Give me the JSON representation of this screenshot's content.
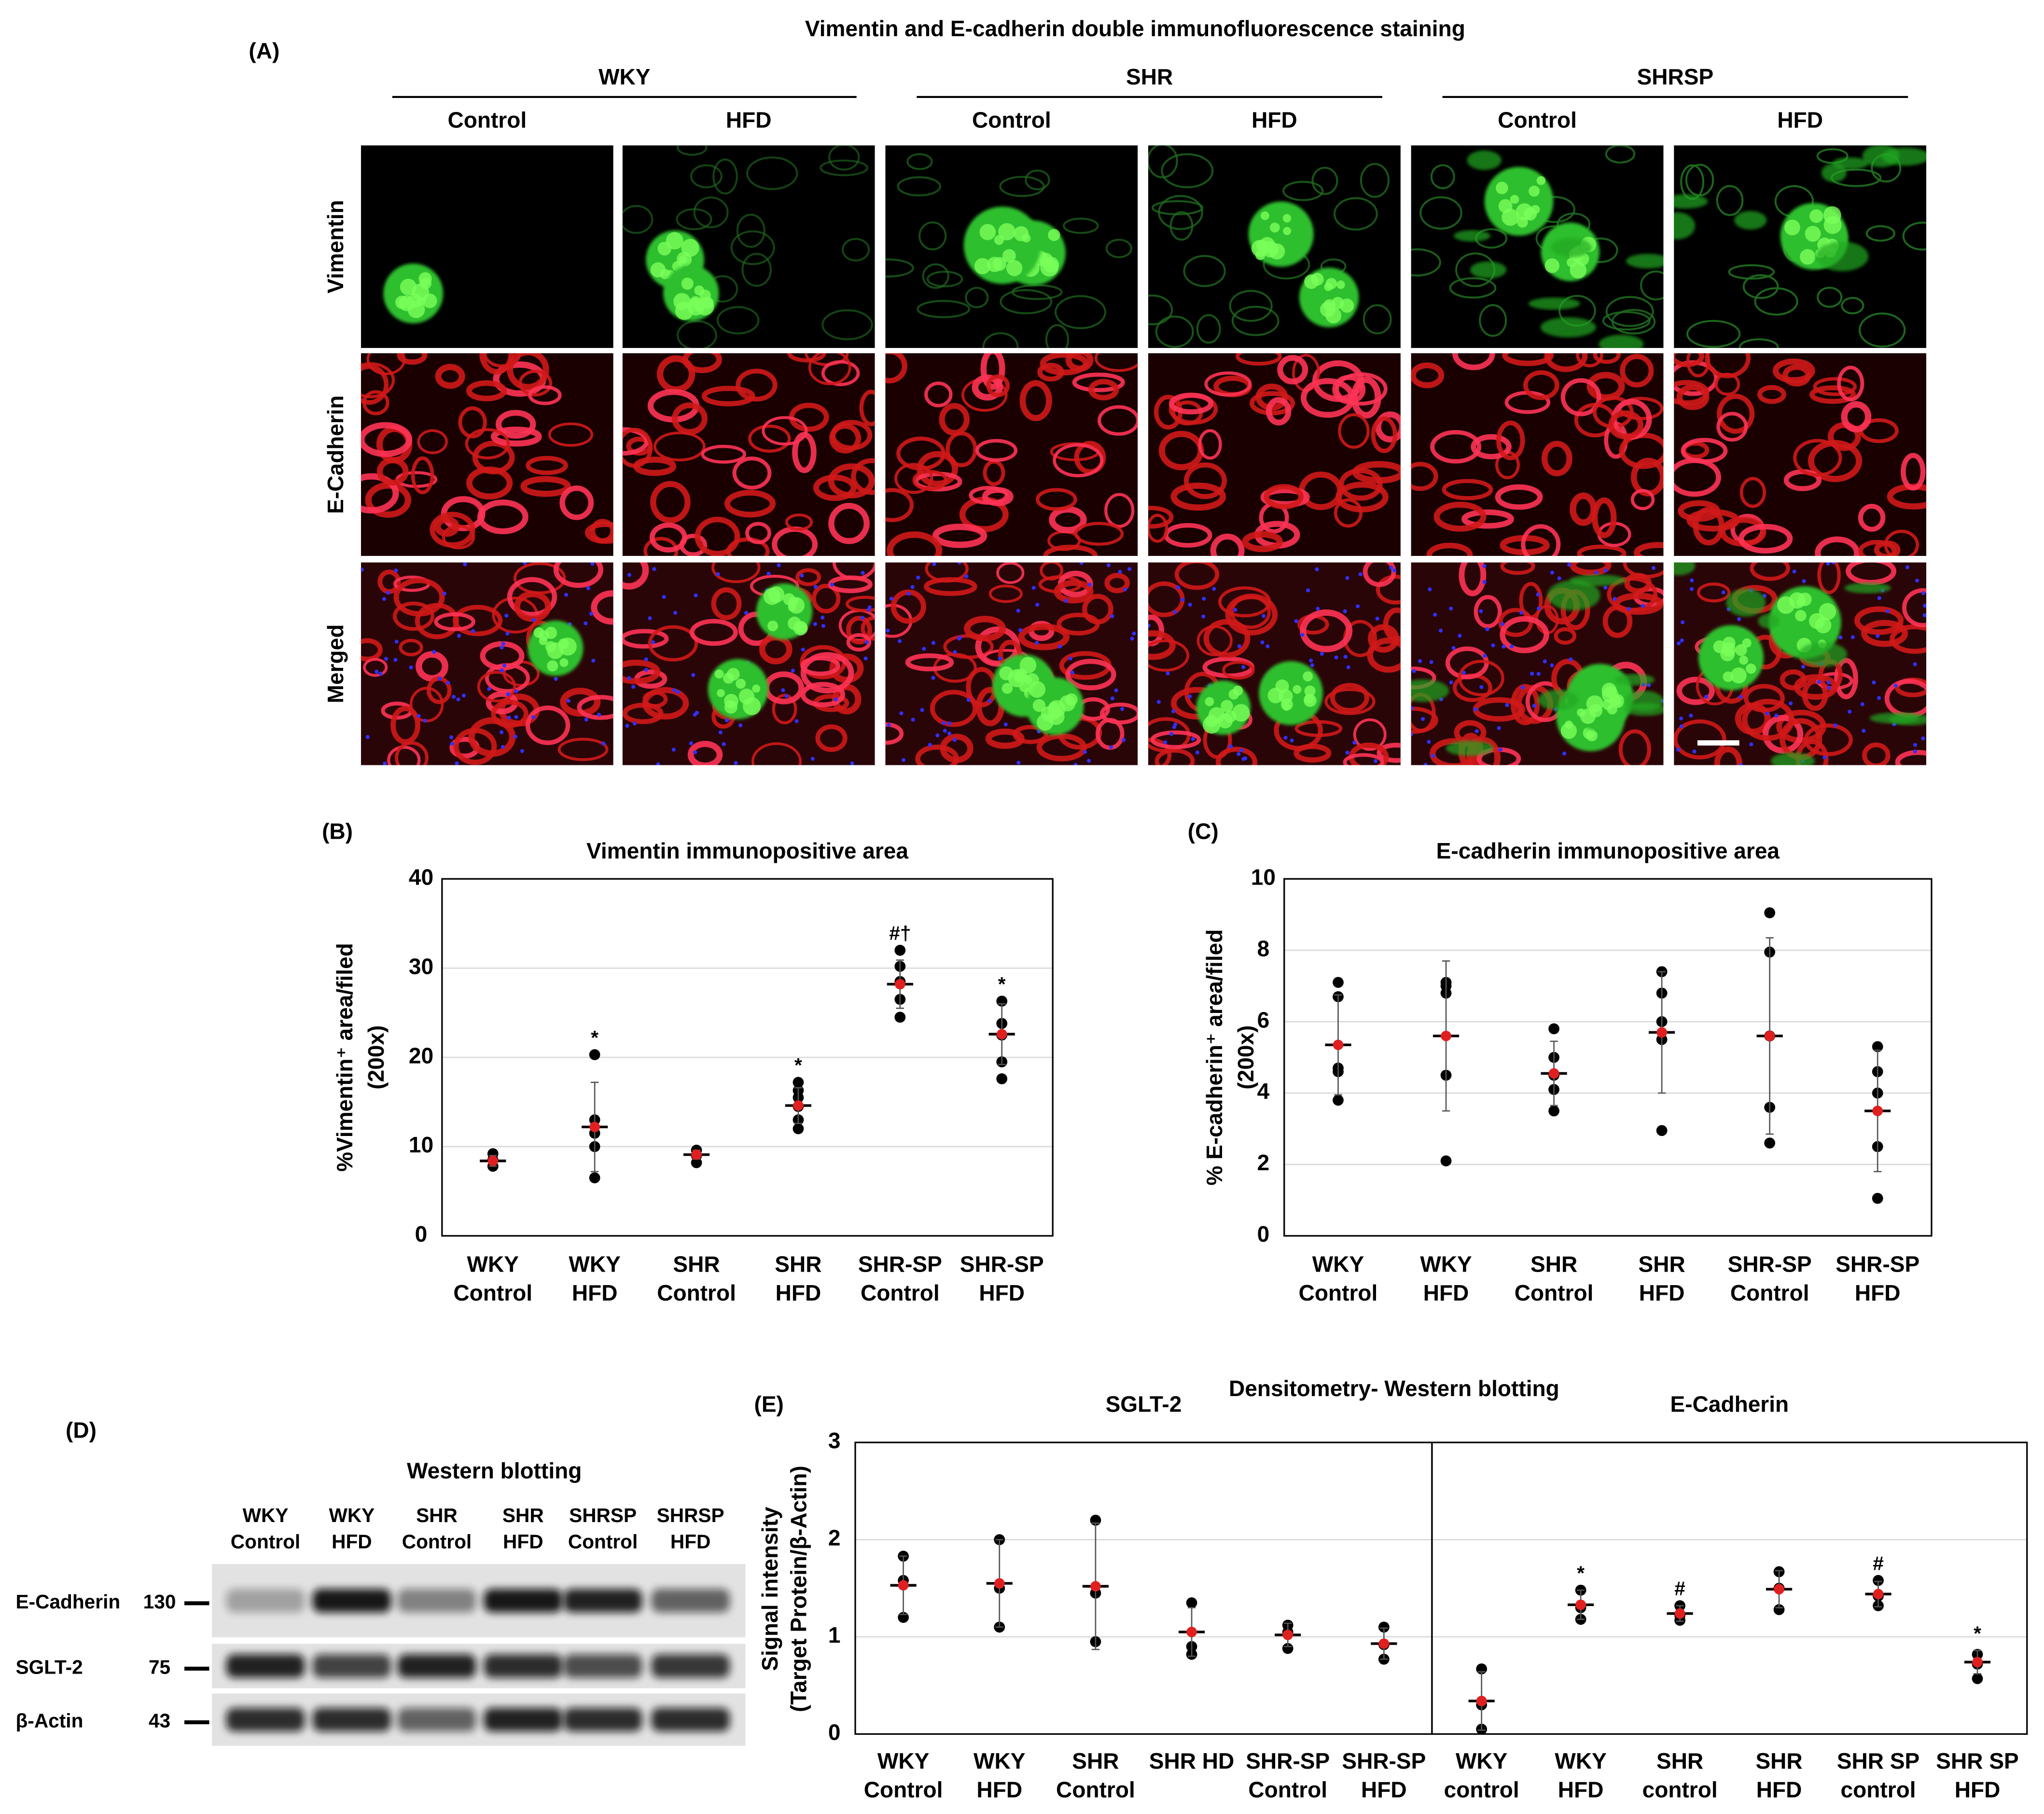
{
  "panel_a": {
    "label": "(A)",
    "title": "Vimentin and E-cadherin double immunofluorescence staining",
    "groups": [
      {
        "name": "WKY",
        "columns": [
          "Control",
          "HFD"
        ]
      },
      {
        "name": "SHR",
        "columns": [
          "Control",
          "HFD"
        ]
      },
      {
        "name": "SHRSP",
        "columns": [
          "Control",
          "HFD"
        ]
      }
    ],
    "row_labels": [
      "Vimentin",
      "E-Cadherin",
      "Merged"
    ]
  },
  "panel_d": {
    "label": "(D)",
    "title": "Western blotting",
    "lanes": [
      [
        "WKY",
        "Control"
      ],
      [
        "WKY",
        "HFD"
      ],
      [
        "SHR",
        "Control"
      ],
      [
        "SHR",
        "HFD"
      ],
      [
        "SHRSP",
        "Control"
      ],
      [
        "SHRSP",
        "HFD"
      ]
    ],
    "rows": [
      {
        "name": "E-Cadherin",
        "kda": "130"
      },
      {
        "name": "SGLT-2",
        "kda": "75"
      },
      {
        "name": "β-Actin",
        "kda": "43"
      }
    ]
  },
  "panel_e": {
    "label": "(E)",
    "title": "Densitometry- Western blotting",
    "ylabel": [
      "Signal intensity",
      "(Target Protein/β-Actin)"
    ]
  },
  "chart_data": [
    {
      "type": "dot",
      "label": "(B)",
      "title": "Vimentin immunopositive area",
      "ylabel": [
        "%Vimentin⁺ area/filed",
        "(200x)"
      ],
      "categories": [
        [
          "WKY",
          "Control"
        ],
        [
          "WKY",
          "HFD"
        ],
        [
          "SHR",
          "Control"
        ],
        [
          "SHR",
          "HFD"
        ],
        [
          "SHR-SP",
          "Control"
        ],
        [
          "SHR-SP",
          "HFD"
        ]
      ],
      "points": [
        [
          9.2,
          8.5,
          7.8
        ],
        [
          20.3,
          13,
          11.5,
          10,
          6.5
        ],
        [
          9.6,
          9,
          8.2
        ],
        [
          17.2,
          16.3,
          15.5,
          14.5,
          13,
          12
        ],
        [
          32,
          30.2,
          28.5,
          26.5,
          24.5
        ],
        [
          26.3,
          23.8,
          22.5,
          19.5,
          17.6
        ]
      ],
      "means": [
        8.4,
        12.2,
        9.1,
        14.6,
        28.2,
        22.6
      ],
      "sd": [
        0.6,
        5,
        0.5,
        2,
        2.7,
        3.4
      ],
      "annotations": [
        null,
        "*",
        null,
        "*",
        "#†",
        "*"
      ],
      "point_color": "#000000",
      "mean_color": "#e02020",
      "ylim": [
        0,
        40
      ],
      "yticks": [
        0,
        10,
        20,
        30,
        40
      ],
      "grid": true
    },
    {
      "type": "dot",
      "label": "(C)",
      "title": "E-cadherin immunopositive area",
      "ylabel": [
        "% E-cadherin⁺ area/filed",
        "(200x)"
      ],
      "categories": [
        [
          "WKY",
          "Control"
        ],
        [
          "WKY",
          "HFD"
        ],
        [
          "SHR",
          "Control"
        ],
        [
          "SHR",
          "HFD"
        ],
        [
          "SHR-SP",
          "Control"
        ],
        [
          "SHR-SP",
          "HFD"
        ]
      ],
      "points": [
        [
          7.1,
          6.7,
          4.7,
          4.6,
          3.8
        ],
        [
          7.1,
          7.0,
          6.8,
          4.5,
          2.1
        ],
        [
          5.8,
          5.0,
          4.5,
          4.1,
          3.5
        ],
        [
          7.4,
          6.8,
          6.0,
          5.5,
          2.95
        ],
        [
          9.05,
          7.95,
          5.6,
          3.6,
          2.6
        ],
        [
          5.3,
          4.6,
          4.0,
          2.5,
          1.05
        ]
      ],
      "means": [
        5.35,
        5.6,
        4.55,
        5.7,
        5.6,
        3.5
      ],
      "sd": [
        1.4,
        2.1,
        0.9,
        1.7,
        2.75,
        1.7
      ],
      "point_color": "#000000",
      "mean_color": "#e02020",
      "ylim": [
        0,
        10
      ],
      "yticks": [
        0,
        2,
        4,
        6,
        8,
        10
      ],
      "grid": true
    },
    {
      "type": "dot",
      "title": "SGLT-2",
      "categories": [
        [
          "WKY",
          "Control"
        ],
        [
          "WKY",
          "HFD"
        ],
        [
          "SHR",
          "Control"
        ],
        [
          "SHR HD"
        ],
        [
          "SHR-SP",
          "Control"
        ],
        [
          "SHR-SP",
          "HFD"
        ]
      ],
      "points": [
        [
          1.83,
          1.58,
          1.2
        ],
        [
          2.0,
          1.5,
          1.1
        ],
        [
          2.2,
          1.45,
          0.95
        ],
        [
          1.35,
          0.9,
          0.82
        ],
        [
          1.12,
          1.05,
          0.88
        ],
        [
          1.1,
          0.92,
          0.77
        ]
      ],
      "means": [
        1.53,
        1.55,
        1.52,
        1.05,
        1.02,
        0.93
      ],
      "sd": [
        0.3,
        0.45,
        0.65,
        0.25,
        0.12,
        0.16
      ],
      "point_color": "#000000",
      "mean_color": "#e02020",
      "ylim": [
        0,
        3
      ],
      "yticks": [
        0,
        1,
        2,
        3
      ],
      "grid": true
    },
    {
      "type": "dot",
      "title": "E-Cadherin",
      "categories": [
        [
          "WKY",
          "control"
        ],
        [
          "WKY",
          "HFD"
        ],
        [
          "SHR",
          "control"
        ],
        [
          "SHR",
          "HFD"
        ],
        [
          "SHR SP",
          "control"
        ],
        [
          "SHR SP",
          "HFD"
        ]
      ],
      "points": [
        [
          0.67,
          0.3,
          0.05
        ],
        [
          1.48,
          1.3,
          1.18
        ],
        [
          1.32,
          1.22,
          1.17
        ],
        [
          1.67,
          1.5,
          1.28
        ],
        [
          1.58,
          1.42,
          1.32
        ],
        [
          0.82,
          0.72,
          0.57
        ]
      ],
      "means": [
        0.34,
        1.33,
        1.24,
        1.49,
        1.44,
        0.74
      ],
      "sd": [
        0.3,
        0.15,
        0.08,
        0.19,
        0.13,
        0.12
      ],
      "annotations": [
        null,
        "*",
        "#",
        null,
        "#",
        "*"
      ],
      "point_color": "#000000",
      "mean_color": "#e02020",
      "ylim": [
        0,
        3
      ],
      "yticks": [
        0,
        1,
        2,
        3
      ],
      "grid": true
    }
  ]
}
